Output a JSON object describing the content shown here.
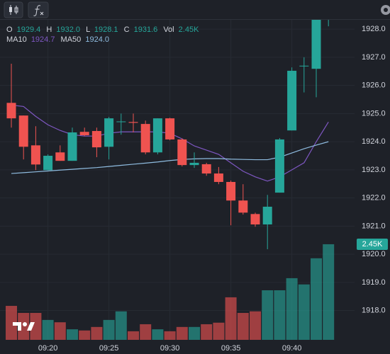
{
  "chart_data": {
    "type": "candlestick",
    "categories": [
      null,
      null,
      null,
      "09:20",
      null,
      null,
      null,
      null,
      "09:25",
      null,
      null,
      null,
      null,
      "09:30",
      null,
      null,
      null,
      null,
      "09:35",
      null,
      null,
      null,
      null,
      "09:40",
      null,
      null,
      null
    ],
    "open": [
      1925.38,
      1924.93,
      1923.87,
      1922.99,
      1923.62,
      1923.32,
      1924.35,
      1924.38,
      1923.82,
      1924.7,
      1924.7,
      1924.63,
      1923.62,
      1924.83,
      1924.08,
      1923.17,
      1923.2,
      1922.87,
      1922.57,
      1921.91,
      1921.43,
      1921.06,
      1922.19,
      1924.4,
      1926.69,
      1926.59,
      1929.4
    ],
    "high": [
      1926.77,
      1924.93,
      1924.55,
      1923.55,
      1923.87,
      1924.5,
      1924.5,
      1924.5,
      1924.88,
      1925.0,
      1925.0,
      1924.75,
      1924.83,
      1924.85,
      1924.12,
      1923.62,
      1923.25,
      1923.1,
      1922.62,
      1922.49,
      1921.48,
      1922.11,
      1924.13,
      1926.64,
      1927.0,
      1928.5,
      1932.0
    ],
    "low": [
      1924.5,
      1923.37,
      1922.99,
      1922.99,
      1923.32,
      1923.32,
      1924.2,
      1923.45,
      1923.37,
      1924.25,
      1924.33,
      1923.55,
      1923.55,
      1924.05,
      1923.12,
      1923.07,
      1922.79,
      1922.49,
      1921.03,
      1921.41,
      1920.98,
      1920.18,
      1922.19,
      1924.4,
      1925.75,
      1925.58,
      1928.1
    ],
    "close": [
      1924.83,
      1923.82,
      1923.19,
      1923.5,
      1923.32,
      1924.33,
      1924.23,
      1923.8,
      1924.83,
      1924.72,
      1924.67,
      1923.62,
      1924.83,
      1924.08,
      1923.17,
      1923.25,
      1922.87,
      1922.57,
      1921.91,
      1921.48,
      1921.06,
      1921.69,
      1924.08,
      1926.52,
      1926.7,
      1928.5,
      1931.6
    ],
    "up_color": "#26a69a",
    "down_color": "#ef5350",
    "volume": {
      "axis": "y2",
      "values": [
        0.87,
        0.69,
        0.69,
        0.51,
        0.45,
        0.27,
        0.24,
        0.33,
        0.51,
        0.73,
        0.22,
        0.4,
        0.27,
        0.22,
        0.33,
        0.33,
        0.4,
        0.44,
        1.09,
        0.69,
        0.73,
        1.27,
        1.27,
        1.58,
        1.42,
        2.09,
        2.45
      ],
      "value_label": "2.45K"
    },
    "moving_averages": [
      {
        "name": "MA10",
        "color": "#7e57c2",
        "value_label": "1924.7",
        "values": [
          1925.3,
          1925.25,
          1924.9,
          1924.6,
          1924.4,
          1924.25,
          1924.2,
          1924.2,
          1924.3,
          1924.35,
          1924.35,
          1924.35,
          1924.35,
          1924.3,
          1924.1,
          1923.85,
          1923.7,
          1923.55,
          1923.25,
          1922.95,
          1922.75,
          1922.6,
          1922.75,
          1923.0,
          1923.25,
          1924.0,
          1924.7
        ]
      },
      {
        "name": "MA50",
        "color": "#8fbce0",
        "value_label": "1924.0",
        "values": [
          1922.87,
          1922.9,
          1922.93,
          1922.96,
          1922.99,
          1923.02,
          1923.05,
          1923.08,
          1923.12,
          1923.16,
          1923.2,
          1923.24,
          1923.28,
          1923.33,
          1923.37,
          1923.39,
          1923.4,
          1923.4,
          1923.38,
          1923.37,
          1923.36,
          1923.36,
          1923.45,
          1923.6,
          1923.75,
          1923.88,
          1924.0
        ]
      }
    ],
    "legend": [
      {
        "label": "O",
        "value": "1929.4"
      },
      {
        "label": "H",
        "value": "1932.0"
      },
      {
        "label": "L",
        "value": "1928.1"
      },
      {
        "label": "C",
        "value": "1931.6"
      },
      {
        "label": "Vol",
        "value": "2.45K"
      }
    ],
    "ylim": [
      1916.96,
      1928.33
    ],
    "yticks": [
      {
        "value": 1918,
        "label": "1918.0"
      },
      {
        "value": 1919,
        "label": "1919.0"
      },
      {
        "value": 1920,
        "label": "1920.0"
      },
      {
        "value": 1921,
        "label": "1921.0"
      },
      {
        "value": 1922,
        "label": "1922.0"
      },
      {
        "value": 1923,
        "label": "1923.0"
      },
      {
        "value": 1924,
        "label": "1924.0"
      },
      {
        "value": 1925,
        "label": "1925.0"
      },
      {
        "value": 1926,
        "label": "1926.0"
      },
      {
        "value": 1927,
        "label": "1927.0"
      },
      {
        "value": 1928,
        "label": "1928.0"
      }
    ],
    "y2lim": [
      0,
      8.2
    ],
    "grid": true
  }
}
